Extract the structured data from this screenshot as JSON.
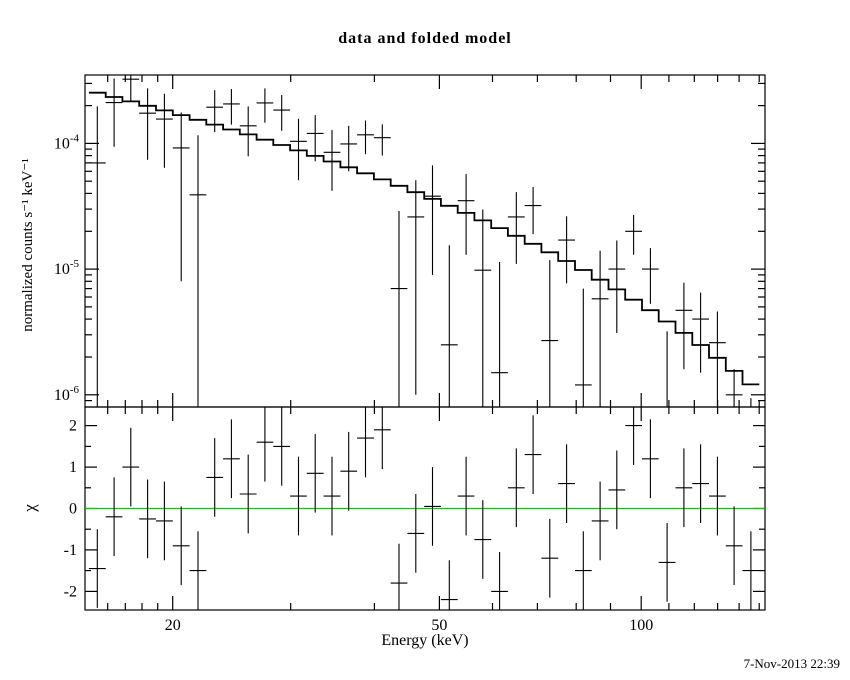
{
  "chart": {
    "title": "data and folded model",
    "xlabel": "Energy (keV)",
    "ylabel": "normalized counts s⁻¹ keV⁻¹",
    "ylabel2": "χ",
    "timestamp": "7-Nov-2013 22:39"
  },
  "chart_data": [
    {
      "type": "line",
      "title": "data and folded model",
      "xlabel": "Energy (keV)",
      "ylabel": "normalized counts s-1 keV-1",
      "xscale": "log",
      "yscale": "log",
      "xlim": [
        14.8,
        153
      ],
      "ylim": [
        8e-07,
        0.00035
      ],
      "x_major_ticks": [
        20,
        50,
        100
      ],
      "x_minor_ticks": [
        16,
        17,
        18,
        19,
        30,
        40,
        60,
        70,
        80,
        90,
        110,
        120,
        130,
        140,
        150
      ],
      "y_major_ticks": [
        {
          "value": 0.0001,
          "exp": "-4"
        },
        {
          "value": 1e-05,
          "exp": "-5"
        },
        {
          "value": 1e-06,
          "exp": "-6"
        }
      ],
      "bin_edges": [
        15.0,
        15.89,
        16.83,
        17.83,
        18.89,
        20.01,
        21.2,
        22.45,
        23.78,
        25.19,
        26.68,
        28.26,
        29.94,
        31.71,
        33.59,
        35.58,
        37.69,
        39.92,
        42.29,
        44.79,
        47.45,
        50.26,
        53.24,
        56.39,
        59.73,
        63.27,
        67.02,
        70.99,
        75.2,
        79.65,
        84.37,
        89.37,
        94.66,
        100.27,
        106.21,
        112.5,
        119.17,
        126.23,
        133.71,
        141.63,
        150.02
      ],
      "model": [
        0.000253,
        0.000234,
        0.000216,
        0.000199,
        0.000183,
        0.000168,
        0.000154,
        0.000141,
        0.000129,
        0.000118,
        0.000107,
        9.71e-05,
        8.8e-05,
        7.96e-05,
        7.18e-05,
        6.45e-05,
        5.78e-05,
        5.17e-05,
        4.6e-05,
        4.09e-05,
        3.62e-05,
        3.19e-05,
        2.8e-05,
        2.44e-05,
        2.12e-05,
        1.84e-05,
        1.59e-05,
        1.36e-05,
        1.16e-05,
        9.83e-06,
        8.24e-06,
        6.89e-06,
        5.71e-06,
        4.71e-06,
        3.83e-06,
        3.11e-06,
        2.49e-06,
        1.97e-06,
        1.55e-06,
        1.21e-06
      ],
      "data": [
        7e-05,
        0.000211,
        0.000324,
        0.000174,
        0.000156,
        9.2e-05,
        3.9e-05,
        0.000194,
        0.000206,
        0.000138,
        0.00021,
        0.000184,
        0.000104,
        0.00012,
        8.5e-05,
        9.9e-05,
        0.000117,
        0.000111,
        7e-06,
        2.6e-05,
        3.8e-05,
        2.5e-06,
        3.5e-05,
        9.8e-06,
        1.5e-06,
        2.6e-05,
        3.2e-05,
        2.7e-06,
        1.7e-05,
        1.2e-06,
        5.8e-06,
        1e-05,
        2e-05,
        1e-05,
        8e-07,
        4.7e-06,
        4e-06,
        2.6e-06,
        1e-06,
        4e-07
      ],
      "data_err": [
        0.000127,
        0.000117,
        0.000108,
        0.0001,
        9.2e-05,
        8.4e-05,
        7.7e-05,
        7.1e-05,
        6.5e-05,
        5.9e-05,
        6.4e-05,
        5.8e-05,
        5.3e-05,
        4.8e-05,
        4.3e-05,
        3.9e-05,
        3.5e-05,
        3.1e-05,
        2.2e-05,
        2.5e-05,
        2.9e-05,
        1.3e-05,
        2.2e-05,
        2e-05,
        9.9e-06,
        1.5e-05,
        1.3e-05,
        9.1e-06,
        9.3e-06,
        5.8e-06,
        8.2e-06,
        6.9e-06,
        7e-06,
        4.7e-06,
        2.4e-06,
        3.1e-06,
        2.5e-06,
        2e-06,
        6e-07,
        5.4e-07
      ]
    },
    {
      "type": "scatter",
      "ylabel": "chi",
      "ylim": [
        -2.45,
        2.45
      ],
      "y_ticks": [
        -2,
        -1,
        0,
        1,
        2
      ],
      "y_minor_ticks": [
        -1.5,
        -0.5,
        0.5,
        1.5
      ],
      "chi": [
        -1.45,
        -0.2,
        1.0,
        -0.25,
        -0.3,
        -0.9,
        -1.5,
        0.75,
        1.2,
        0.35,
        1.6,
        1.5,
        0.3,
        0.85,
        0.3,
        0.9,
        1.7,
        1.9,
        -1.8,
        -0.6,
        0.05,
        -2.2,
        0.3,
        -0.75,
        -2.0,
        0.5,
        1.3,
        -1.2,
        0.6,
        -1.5,
        -0.3,
        0.45,
        2.0,
        1.2,
        -1.3,
        0.5,
        0.6,
        0.3,
        -0.9,
        -1.5
      ],
      "chi_err": 0.95,
      "zero_line_color": "#00cc00"
    }
  ]
}
